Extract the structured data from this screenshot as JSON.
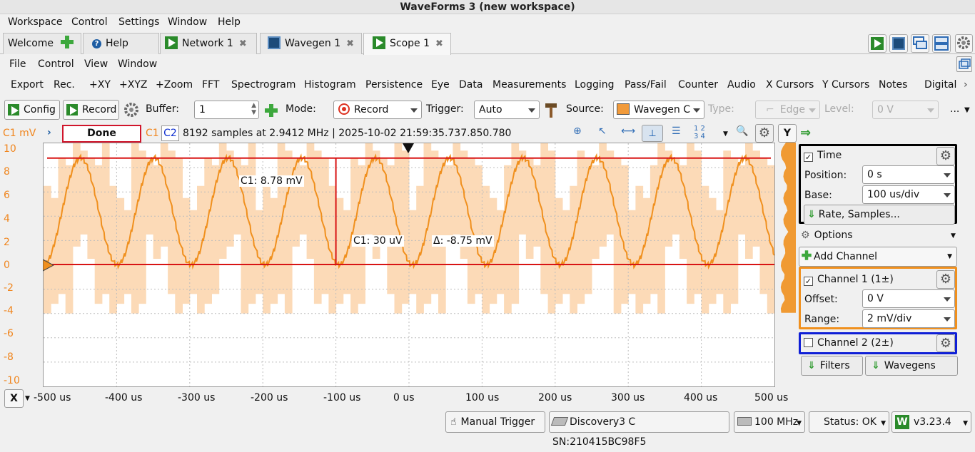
{
  "window_title": "WaveForms 3 (new workspace)",
  "app_menu": [
    "Workspace",
    "Control",
    "Settings",
    "Window",
    "Help"
  ],
  "tabs": [
    {
      "label": "Welcome"
    },
    {
      "label": "Help"
    },
    {
      "label": "Network 1",
      "close": "✖"
    },
    {
      "label": "Wavegen 1",
      "close": "✖"
    },
    {
      "label": "Scope 1",
      "close": "✖"
    }
  ],
  "scope_menu": [
    "File",
    "Control",
    "View",
    "Window"
  ],
  "tool_menu": [
    "Export",
    "Rec.",
    "+XY",
    "+XYZ",
    "+Zoom",
    "FFT",
    "Spectrogram",
    "Histogram",
    "Persistence",
    "Eye",
    "Data",
    "Measurements",
    "Logging",
    "Pass/Fail",
    "Counter",
    "Audio",
    "X Cursors",
    "Y Cursors",
    "Notes",
    "Digital"
  ],
  "controls": {
    "config_label": "Config",
    "record_label": "Record",
    "buffer_label": "Buffer:",
    "buffer_value": "1",
    "mode_label": "Mode:",
    "mode_value": "Record",
    "trigger_label": "Trigger:",
    "trigger_value": "Auto",
    "source_label": "Source:",
    "source_value": "Wavegen C",
    "type_label": "Type:",
    "type_value": "Edge",
    "level_label": "Level:",
    "level_value": "0 V",
    "more": "..."
  },
  "plot_info": {
    "unit_label": "C1 mV",
    "status": "Done",
    "ch1": "C1",
    "ch2": "C2",
    "summary": "8192 samples at 2.9412 MHz | 2025-10-02 21:59:35.737.850.780",
    "y_button": "Y"
  },
  "y_ticks": [
    "10",
    "8",
    "6",
    "4",
    "2",
    "0",
    "-2",
    "-4",
    "-6",
    "-8",
    "-10"
  ],
  "x_ticks": [
    "-500 us",
    "-400 us",
    "-300 us",
    "-200 us",
    "-100 us",
    "0 us",
    "100 us",
    "200 us",
    "300 us",
    "400 us",
    "500 us"
  ],
  "x_button": "X",
  "cursors": {
    "c1_top": "C1: 8.78 mV",
    "c1_bottom": "C1: 30 uV",
    "delta": "Δ: -8.75 mV"
  },
  "chart_data": {
    "type": "line",
    "xlabel": "",
    "ylabel": "C1 mV",
    "xlim": [
      -500,
      500
    ],
    "ylim": [
      -10,
      10
    ],
    "grid": true,
    "series": [
      {
        "name": "C1",
        "color": "#f0901e",
        "period_us": 101,
        "amplitude_mV": 4.4,
        "offset_mV": 4.4,
        "envelope_low_mV": -4,
        "envelope_high_mV": 10
      }
    ]
  },
  "side_panel": {
    "time_label": "Time",
    "position_label": "Position:",
    "position_value": "0 s",
    "base_label": "Base:",
    "base_value": "100 us/div",
    "rate_button": "Rate, Samples...",
    "options_label": "Options",
    "add_channel": "Add Channel",
    "ch1_label": "Channel 1 (1±)",
    "offset_label": "Offset:",
    "offset_value": "0 V",
    "range_label": "Range:",
    "range_value": "2 mV/div",
    "ch2_label": "Channel 2 (2±)",
    "filters": "Filters",
    "wavegens": "Wavegens"
  },
  "status_bar": {
    "manual_trigger": "Manual Trigger",
    "device": "Discovery3 C SN:210415BC98F5",
    "clock": "100 MHz",
    "status": "Status: OK",
    "version": "v3.23.4"
  },
  "colors": {
    "trace": "#f0901e",
    "envelope": "#fcd8b3",
    "cursor": "#d81414",
    "status_box": "#d0152b",
    "time_box": "#000000",
    "ch1_box": "#f0901e",
    "ch2_box": "#0f1fd6"
  }
}
